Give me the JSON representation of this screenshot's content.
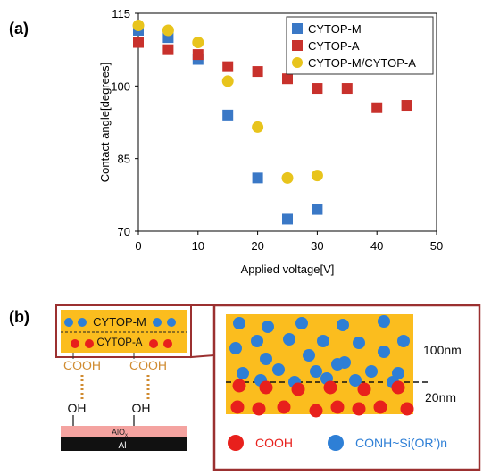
{
  "panel_a_label": "(a)",
  "panel_b_label": "(b)",
  "chart_data": {
    "type": "scatter",
    "xlabel": "Applied voltage[V]",
    "ylabel": "Contact angle[degrees]",
    "xlim": [
      0,
      50
    ],
    "ylim": [
      70,
      115
    ],
    "xticks": [
      0,
      10,
      20,
      30,
      40,
      50
    ],
    "yticks": [
      70,
      85,
      100,
      115
    ],
    "grid": false,
    "legend_position": "top-right",
    "series": [
      {
        "name": "CYTOP-M",
        "color": "#3a78c6",
        "marker": "square",
        "x": [
          0,
          5,
          10,
          15,
          20,
          25,
          30
        ],
        "y": [
          111.5,
          110,
          105.5,
          94,
          81,
          72.5,
          74.5
        ]
      },
      {
        "name": "CYTOP-A",
        "color": "#c8312c",
        "marker": "square",
        "x": [
          0,
          5,
          10,
          15,
          20,
          25,
          30,
          35,
          40,
          45
        ],
        "y": [
          109,
          107.5,
          106.5,
          104,
          103,
          101.5,
          99.5,
          99.5,
          95.5,
          96
        ]
      },
      {
        "name": "CYTOP-M/CYTOP-A",
        "color": "#e8c41c",
        "marker": "circle",
        "x": [
          0,
          5,
          10,
          15,
          20,
          25,
          30
        ],
        "y": [
          112.5,
          111.5,
          109,
          101,
          91.5,
          81,
          81.5
        ]
      }
    ]
  },
  "diagram": {
    "layer_top_label": "CYTOP-M",
    "layer_bottom_label": "CYTOP-A",
    "cooh_left": "COOH",
    "cooh_right": "COOH",
    "oh_left": "OH",
    "oh_right": "OH",
    "alox_label": "AlO",
    "alox_sub": "x",
    "al_label": "Al",
    "thickness_top": "100nm",
    "thickness_bottom": "20nm",
    "legend_red": "COOH",
    "legend_blue": "CONH~Si(OR’)n",
    "colors": {
      "layer_fill": "#fbbd1e",
      "frame": "#9b3030",
      "red_dot": "#e8201c",
      "blue_dot": "#2e7fd6",
      "cooh_text": "#d08b30",
      "alox_fill": "#f4a3a0",
      "al_fill": "#111111"
    }
  }
}
